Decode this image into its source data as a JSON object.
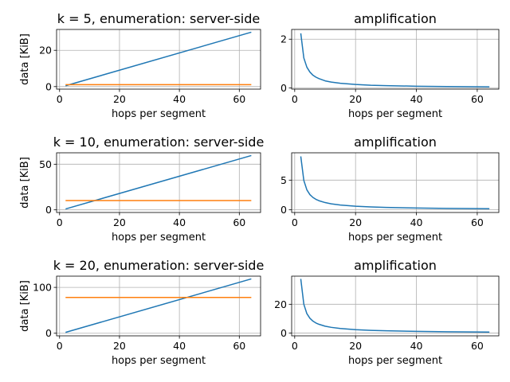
{
  "colors": {
    "series_0": "#1f77b4",
    "series_1": "#ff7f0e",
    "grid": "#b0b0b0",
    "axis": "#000000"
  },
  "chart_data": [
    {
      "type": "line",
      "title": "k = 5, enumeration: server-side",
      "xlabel": "hops per segment",
      "ylabel": "data [KiB]",
      "xlim": [
        -1,
        67.1
      ],
      "ylim": [
        -1.4,
        31.5
      ],
      "xticks": [
        0,
        20,
        40,
        60
      ],
      "yticks": [
        0,
        20
      ],
      "grid": true,
      "series": [
        {
          "color": "#1f77b4",
          "x": [
            2,
            64
          ],
          "y": [
            0.47,
            30.0
          ]
        },
        {
          "color": "#ff7f0e",
          "x": [
            2,
            64
          ],
          "y": [
            1.05,
            1.05
          ]
        }
      ]
    },
    {
      "type": "line",
      "title": "amplification",
      "xlabel": "hops per segment",
      "ylabel": "",
      "xlim": [
        -1,
        67.1
      ],
      "ylim": [
        -0.05,
        2.4
      ],
      "xticks": [
        0,
        20,
        40,
        60
      ],
      "yticks": [
        0,
        2
      ],
      "grid": true,
      "series": [
        {
          "color": "#1f77b4",
          "x": [
            2,
            3,
            4,
            5,
            6,
            7,
            8,
            10,
            12,
            15,
            20,
            25,
            30,
            40,
            50,
            64
          ],
          "y": [
            2.24,
            1.23,
            0.85,
            0.65,
            0.52,
            0.44,
            0.38,
            0.29,
            0.24,
            0.19,
            0.14,
            0.11,
            0.094,
            0.07,
            0.056,
            0.044
          ]
        }
      ]
    },
    {
      "type": "line",
      "title": "k = 10, enumeration: server-side",
      "xlabel": "hops per segment",
      "ylabel": "data [KiB]",
      "xlim": [
        -1,
        67.1
      ],
      "ylim": [
        -2.9,
        62.5
      ],
      "xticks": [
        0,
        20,
        40,
        60
      ],
      "yticks": [
        0,
        50
      ],
      "grid": true,
      "series": [
        {
          "color": "#1f77b4",
          "x": [
            2,
            64
          ],
          "y": [
            0.95,
            59.5
          ]
        },
        {
          "color": "#ff7f0e",
          "x": [
            2,
            64
          ],
          "y": [
            10.2,
            10.2
          ]
        }
      ]
    },
    {
      "type": "line",
      "title": "amplification",
      "xlabel": "hops per segment",
      "ylabel": "",
      "xlim": [
        -1,
        67.1
      ],
      "ylim": [
        -0.45,
        9.6
      ],
      "xticks": [
        0,
        20,
        40,
        60
      ],
      "yticks": [
        0,
        5
      ],
      "grid": true,
      "series": [
        {
          "color": "#1f77b4",
          "x": [
            2,
            3,
            4,
            5,
            6,
            7,
            8,
            10,
            12,
            15,
            20,
            25,
            30,
            40,
            50,
            64
          ],
          "y": [
            9.0,
            4.94,
            3.36,
            2.56,
            2.08,
            1.76,
            1.53,
            1.22,
            1.01,
            0.81,
            0.6,
            0.48,
            0.4,
            0.3,
            0.24,
            0.19
          ]
        }
      ]
    },
    {
      "type": "line",
      "title": "k = 20, enumeration: server-side",
      "xlabel": "hops per segment",
      "ylabel": "data [KiB]",
      "xlim": [
        -1,
        67.1
      ],
      "ylim": [
        -5.7,
        124.5
      ],
      "xticks": [
        0,
        20,
        40,
        60
      ],
      "yticks": [
        0,
        100
      ],
      "grid": true,
      "series": [
        {
          "color": "#1f77b4",
          "x": [
            2,
            64
          ],
          "y": [
            1.9,
            118.5
          ]
        },
        {
          "color": "#ff7f0e",
          "x": [
            2,
            64
          ],
          "y": [
            78,
            78
          ]
        }
      ]
    },
    {
      "type": "line",
      "title": "amplification",
      "xlabel": "hops per segment",
      "ylabel": "",
      "xlim": [
        -1,
        67.1
      ],
      "ylim": [
        -1.9,
        39.5
      ],
      "xticks": [
        0,
        20,
        40,
        60
      ],
      "yticks": [
        0,
        20
      ],
      "grid": true,
      "series": [
        {
          "color": "#1f77b4",
          "x": [
            2,
            3,
            4,
            5,
            6,
            7,
            8,
            10,
            12,
            15,
            20,
            25,
            30,
            40,
            50,
            64
          ],
          "y": [
            37.6,
            20.0,
            13.5,
            10.3,
            8.3,
            7.0,
            6.1,
            4.8,
            4.0,
            3.2,
            2.4,
            1.9,
            1.6,
            1.2,
            0.96,
            0.74
          ]
        }
      ]
    }
  ]
}
